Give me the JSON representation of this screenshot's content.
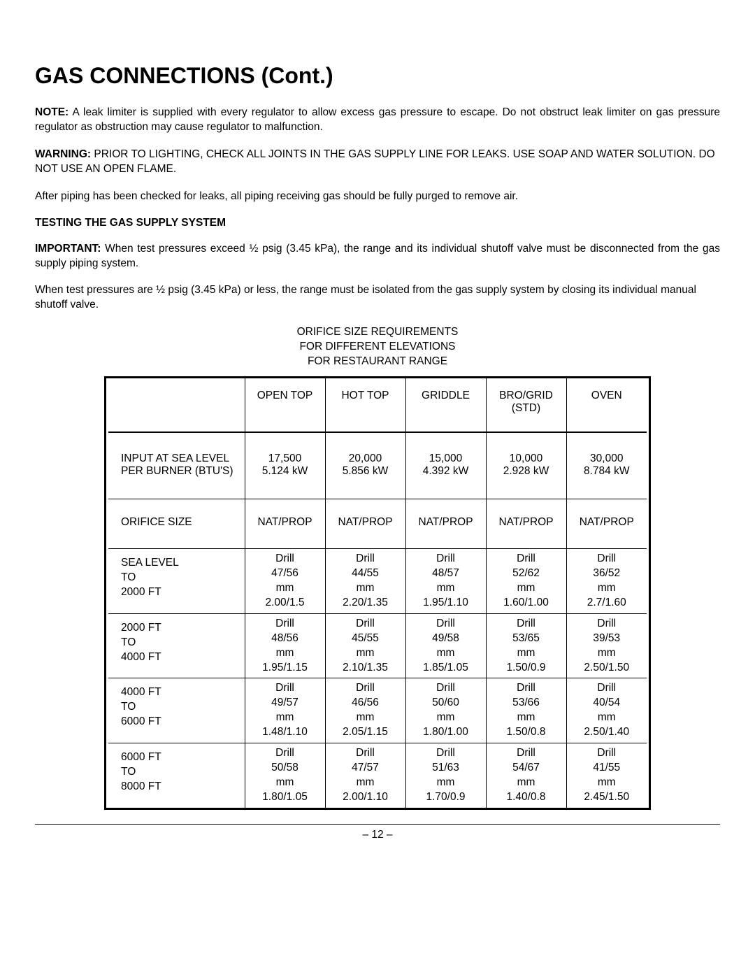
{
  "title": "GAS CONNECTIONS (Cont.)",
  "note_label": "NOTE:",
  "note_text": " A leak limiter is supplied with every regulator to allow excess gas pressure to escape. Do not obstruct leak limiter on gas pressure regulator as obstruction may cause regulator to malfunction.",
  "warning_label": "WARNING:",
  "warning_text": " PRIOR TO LIGHTING, CHECK ALL JOINTS IN THE GAS SUPPLY LINE FOR LEAKS. USE SOAP AND WATER SOLUTION. DO NOT USE AN OPEN FLAME.",
  "after_piping": "After piping has been checked for leaks, all piping receiving gas should be fully purged to remove air.",
  "testing_head": "TESTING THE GAS SUPPLY SYSTEM",
  "important_label": "IMPORTANT:",
  "important_text": " When test pressures exceed ½ psig (3.45 kPa), the range and its individual shutoff valve must be disconnected from the gas supply piping system.",
  "isolate_text": "When test pressures are ½ psig (3.45 kPa) or less, the range must be isolated from the gas supply system by closing its individual manual shutoff valve.",
  "table_title_l1": "ORIFICE SIZE REQUIREMENTS",
  "table_title_l2": "FOR DIFFERENT ELEVATIONS",
  "table_title_l3": "FOR RESTAURANT RANGE",
  "columns": [
    "OPEN TOP",
    "HOT TOP",
    "GRIDDLE",
    "BRO/GRID (STD)",
    "OVEN"
  ],
  "input_label_l1": "INPUT AT SEA LEVEL",
  "input_label_l2": "PER BURNER (BTU'S)",
  "inputs": [
    {
      "btu": "17,500",
      "kw": "5.124 kW"
    },
    {
      "btu": "20,000",
      "kw": "5.856 kW"
    },
    {
      "btu": "15,000",
      "kw": "4.392 kW"
    },
    {
      "btu": "10,000",
      "kw": "2.928 kW"
    },
    {
      "btu": "30,000",
      "kw": "8.784 kW"
    }
  ],
  "orifice_label": "ORIFICE SIZE",
  "natprop": "NAT/PROP",
  "elevations": [
    {
      "label": [
        "SEA LEVEL",
        "TO",
        "2000 FT"
      ],
      "cells": [
        [
          "Drill",
          "47/56",
          "mm",
          "2.00/1.5"
        ],
        [
          "Drill",
          "44/55",
          "mm",
          "2.20/1.35"
        ],
        [
          "Drill",
          "48/57",
          "mm",
          "1.95/1.10"
        ],
        [
          "Drill",
          "52/62",
          "mm",
          "1.60/1.00"
        ],
        [
          "Drill",
          "36/52",
          "mm",
          "2.7/1.60"
        ]
      ]
    },
    {
      "label": [
        "2000 FT",
        "TO",
        "4000 FT"
      ],
      "cells": [
        [
          "Drill",
          "48/56",
          "mm",
          "1.95/1.15"
        ],
        [
          "Drill",
          "45/55",
          "mm",
          "2.10/1.35"
        ],
        [
          "Drill",
          "49/58",
          "mm",
          "1.85/1.05"
        ],
        [
          "Drill",
          "53/65",
          "mm",
          "1.50/0.9"
        ],
        [
          "Drill",
          "39/53",
          "mm",
          "2.50/1.50"
        ]
      ]
    },
    {
      "label": [
        "4000 FT",
        "TO",
        "6000 FT"
      ],
      "cells": [
        [
          "Drill",
          "49/57",
          "mm",
          "1.48/1.10"
        ],
        [
          "Drill",
          "46/56",
          "mm",
          "2.05/1.15"
        ],
        [
          "Drill",
          "50/60",
          "mm",
          "1.80/1.00"
        ],
        [
          "Drill",
          "53/66",
          "mm",
          "1.50/0.8"
        ],
        [
          "Drill",
          "40/54",
          "mm",
          "2.50/1.40"
        ]
      ]
    },
    {
      "label": [
        "6000 FT",
        "TO",
        "8000 FT"
      ],
      "cells": [
        [
          "Drill",
          "50/58",
          "mm",
          "1.80/1.05"
        ],
        [
          "Drill",
          "47/57",
          "mm",
          "2.00/1.10"
        ],
        [
          "Drill",
          "51/63",
          "mm",
          "1.70/0.9"
        ],
        [
          "Drill",
          "54/67",
          "mm",
          "1.40/0.8"
        ],
        [
          "Drill",
          "41/55",
          "mm",
          "2.45/1.50"
        ]
      ]
    }
  ],
  "page_number": "– 12 –"
}
